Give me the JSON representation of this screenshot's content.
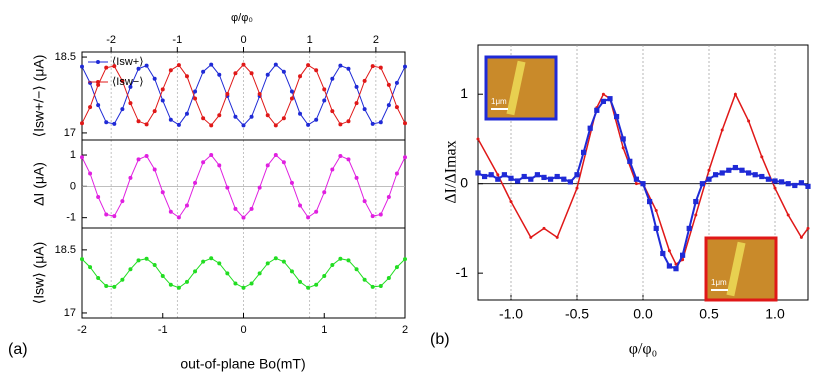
{
  "chart_data": [
    {
      "type": "line",
      "panel_label": "(a)",
      "xlabel": "out-of-plane Bo(mT)",
      "xlim": [
        -2,
        2
      ],
      "xticks": [
        -2,
        -1,
        0,
        1,
        2
      ],
      "x2label": "φ/φ₀",
      "x2lim": [
        -2.44,
        2.44
      ],
      "x2ticks": [
        -2,
        -1,
        0,
        1,
        2
      ],
      "grid": true,
      "x": [
        -2,
        -1.9,
        -1.8,
        -1.7,
        -1.6,
        -1.5,
        -1.4,
        -1.3,
        -1.2,
        -1.1,
        -1,
        -0.9,
        -0.8,
        -0.7,
        -0.6,
        -0.5,
        -0.4,
        -0.3,
        -0.2,
        -0.1,
        0,
        0.1,
        0.2,
        0.3,
        0.4,
        0.5,
        0.6,
        0.7,
        0.8,
        0.9,
        1,
        1.1,
        1.2,
        1.3,
        1.4,
        1.5,
        1.6,
        1.7,
        1.8,
        1.9,
        2
      ],
      "subplots": [
        {
          "ylabel": "⟨Isw+/−⟩ (μA)",
          "ylim": [
            16.86,
            18.6
          ],
          "yticks": [
            17,
            18.5
          ],
          "legend": "upper left",
          "series": [
            {
              "name": "⟨Isw+⟩",
              "color": "#1f2ad6",
              "values": [
                18.31,
                17.99,
                17.55,
                17.21,
                17.18,
                17.47,
                17.91,
                18.27,
                18.33,
                18.07,
                17.64,
                17.26,
                17.16,
                17.38,
                17.82,
                18.21,
                18.35,
                18.15,
                17.73,
                17.32,
                17.15,
                17.32,
                17.73,
                18.15,
                18.35,
                18.21,
                17.82,
                17.38,
                17.16,
                17.26,
                17.64,
                18.07,
                18.33,
                18.27,
                17.91,
                17.47,
                17.18,
                17.21,
                17.55,
                17.99,
                18.31
              ]
            },
            {
              "name": "⟨Isw−⟩",
              "color": "#e01818",
              "values": [
                17.19,
                17.51,
                17.95,
                18.29,
                18.32,
                18.03,
                17.59,
                17.23,
                17.17,
                17.43,
                17.86,
                18.24,
                18.34,
                18.12,
                17.68,
                17.29,
                17.15,
                17.35,
                17.77,
                18.18,
                18.35,
                18.18,
                17.77,
                17.35,
                17.15,
                17.29,
                17.68,
                18.12,
                18.34,
                18.24,
                17.86,
                17.43,
                17.17,
                17.23,
                17.59,
                18.03,
                18.32,
                18.29,
                17.95,
                17.51,
                17.19
              ]
            }
          ]
        },
        {
          "ylabel": "ΔI (μA)",
          "ylim": [
            -1.33,
            1.48
          ],
          "yticks": [
            -1,
            0,
            1
          ],
          "series": [
            {
              "color": "#e020e0",
              "values": [
                0.93,
                0.41,
                -0.34,
                -0.9,
                -0.95,
                -0.47,
                0.27,
                0.86,
                0.97,
                0.54,
                -0.19,
                -0.81,
                -0.99,
                -0.61,
                0.11,
                0.77,
                1,
                0.67,
                -0.04,
                -0.72,
                -1,
                -0.72,
                -0.04,
                0.67,
                1,
                0.77,
                0.11,
                -0.61,
                -0.99,
                -0.81,
                -0.19,
                0.54,
                0.97,
                0.86,
                0.27,
                -0.47,
                -0.95,
                -0.9,
                -0.34,
                0.41,
                0.93
              ]
            }
          ]
        },
        {
          "ylabel": "⟨Isw⟩ (μA)",
          "ylim": [
            16.88,
            19.02
          ],
          "yticks": [
            17,
            18.5
          ],
          "series": [
            {
              "color": "#22dd22",
              "values": [
                18.28,
                18.09,
                17.83,
                17.64,
                17.62,
                17.79,
                18.04,
                18.25,
                18.29,
                18.14,
                17.88,
                17.67,
                17.6,
                17.74,
                17.99,
                18.22,
                18.3,
                18.18,
                17.94,
                17.7,
                17.6,
                17.7,
                17.94,
                18.18,
                18.3,
                18.22,
                17.99,
                17.74,
                17.6,
                17.67,
                17.88,
                18.14,
                18.29,
                18.25,
                18.04,
                17.79,
                17.62,
                17.64,
                17.83,
                18.09,
                18.28
              ]
            }
          ]
        }
      ]
    },
    {
      "type": "line",
      "panel_label": "(b)",
      "xlabel": "φ/φ₀",
      "ylabel": "ΔI/ΔImax",
      "xlim": [
        -1.25,
        1.25
      ],
      "xticks": [
        {
          "value": -1,
          "label": "-1.0"
        },
        {
          "value": -0.5,
          "label": "-0.5"
        },
        {
          "value": 0,
          "label": "0.0"
        },
        {
          "value": 0.5,
          "label": "0.5"
        },
        {
          "value": 1,
          "label": "1.0"
        }
      ],
      "ylim": [
        -1.3,
        1.55
      ],
      "yticks": [
        -1,
        0,
        1
      ],
      "grid": true,
      "insets": [
        {
          "scale_label": "1μm",
          "color": "#1f2ad6"
        },
        {
          "scale_label": "1μm",
          "color": "#e01818"
        }
      ],
      "series": [
        {
          "color": "#e01818",
          "x": [
            -1.25,
            -1.1,
            -1,
            -0.85,
            -0.75,
            -0.65,
            -0.5,
            -0.35,
            -0.3,
            -0.25,
            -0.15,
            -0.05,
            0,
            0.1,
            0.2,
            0.25,
            0.3,
            0.4,
            0.5,
            0.6,
            0.7,
            0.8,
            0.9,
            1,
            1.1,
            1.2,
            1.25
          ],
          "values": [
            0.5,
            0.1,
            -0.2,
            -0.6,
            -0.5,
            -0.6,
            -0.05,
            0.85,
            1,
            0.95,
            0.4,
            0,
            0,
            -0.3,
            -0.75,
            -0.9,
            -0.85,
            -0.35,
            0.15,
            0.6,
            1,
            0.7,
            0.3,
            -0.05,
            -0.35,
            -0.6,
            -0.5
          ]
        },
        {
          "color": "#1f2ad6",
          "x": [
            -1.25,
            -1.2,
            -1.15,
            -1.1,
            -1.05,
            -1,
            -0.95,
            -0.9,
            -0.85,
            -0.8,
            -0.75,
            -0.7,
            -0.65,
            -0.6,
            -0.55,
            -0.5,
            -0.45,
            -0.4,
            -0.35,
            -0.3,
            -0.25,
            -0.2,
            -0.15,
            -0.1,
            -0.05,
            0,
            0.05,
            0.1,
            0.15,
            0.2,
            0.25,
            0.3,
            0.35,
            0.4,
            0.45,
            0.5,
            0.55,
            0.6,
            0.65,
            0.7,
            0.75,
            0.8,
            0.85,
            0.9,
            0.95,
            1,
            1.05,
            1.1,
            1.15,
            1.2,
            1.25
          ],
          "values": [
            0.12,
            0.08,
            0.1,
            0.05,
            0.1,
            0.06,
            0.03,
            0.08,
            0.05,
            0.1,
            0.07,
            0.05,
            0.08,
            0.05,
            0.02,
            0.1,
            0.35,
            0.62,
            0.82,
            0.92,
            0.95,
            0.75,
            0.5,
            0.25,
            0.05,
            0,
            -0.2,
            -0.5,
            -0.78,
            -0.92,
            -0.95,
            -0.8,
            -0.5,
            -0.2,
            0,
            0.05,
            0.1,
            0.12,
            0.15,
            0.18,
            0.15,
            0.12,
            0.1,
            0.08,
            0.05,
            0.03,
            0.02,
            0,
            -0.02,
            0.01,
            -0.03
          ]
        }
      ]
    }
  ]
}
